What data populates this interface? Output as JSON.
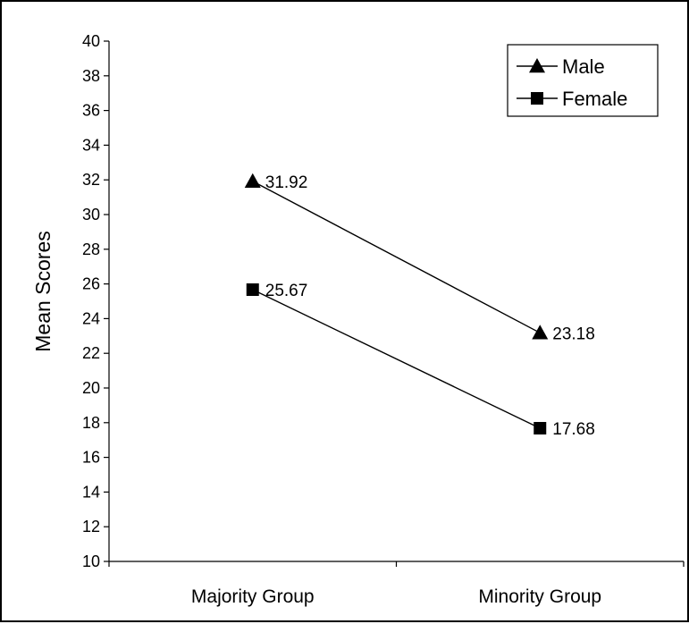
{
  "chart_data": {
    "type": "line",
    "categories": [
      "Majority Group",
      "Minority Group"
    ],
    "series": [
      {
        "name": "Male",
        "marker": "triangle",
        "values": [
          31.92,
          23.18
        ],
        "labels": [
          "31.92",
          "23.18"
        ]
      },
      {
        "name": "Female",
        "marker": "square",
        "values": [
          25.67,
          17.68
        ],
        "labels": [
          "25.67",
          "17.68"
        ]
      }
    ],
    "ylabel": "Mean Scores",
    "xlabel": "",
    "ylim": [
      10,
      40
    ],
    "yticks": [
      "10",
      "12",
      "14",
      "16",
      "18",
      "20",
      "22",
      "24",
      "26",
      "28",
      "30",
      "32",
      "34",
      "36",
      "38",
      "40"
    ],
    "grid": false,
    "legend_position": "top-right",
    "colors": {
      "line": "#000000",
      "marker": "#000000",
      "background": "#ffffff"
    }
  }
}
